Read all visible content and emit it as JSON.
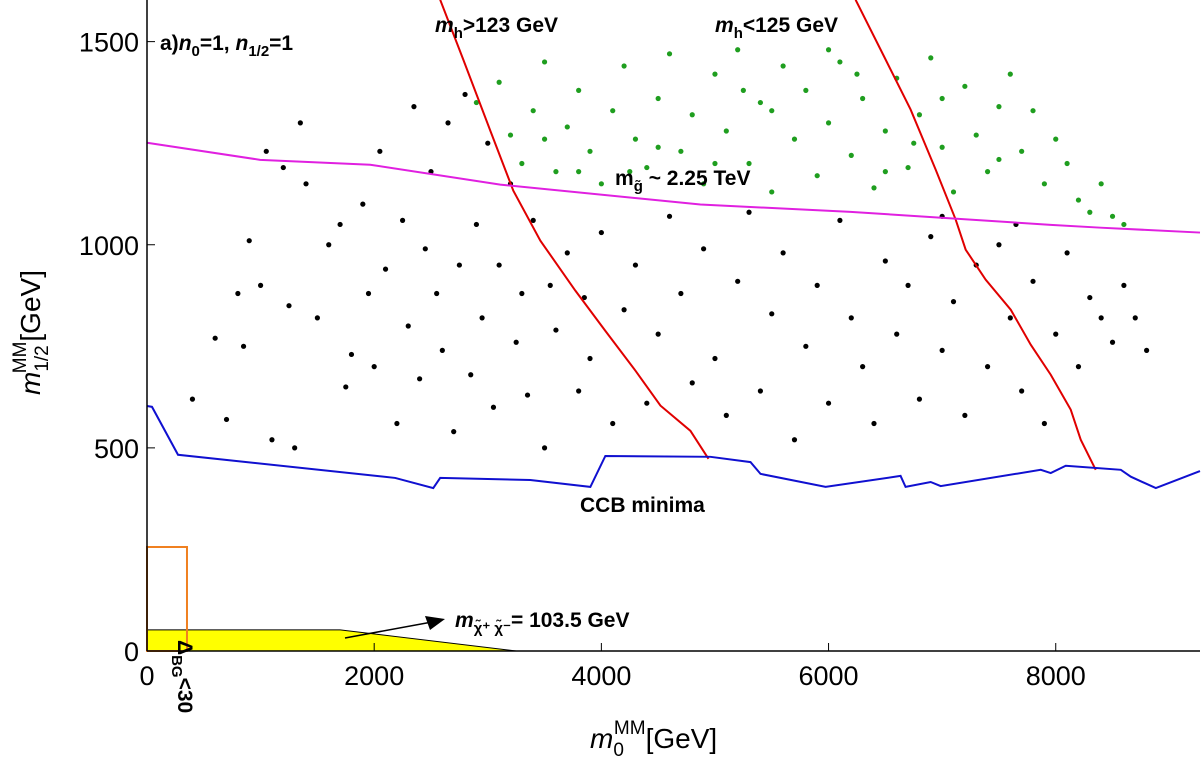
{
  "chart_data": {
    "type": "scatter",
    "xlim": [
      0,
      9270
    ],
    "ylim": [
      0,
      1600
    ],
    "xticks": [
      0,
      2000,
      4000,
      6000,
      8000
    ],
    "yticks": [
      0,
      500,
      1000,
      1500
    ],
    "x_label": [
      "m",
      "0",
      "MM",
      "[GeV]"
    ],
    "y_label": [
      "m",
      "1/2",
      "MM",
      "[GeV]"
    ],
    "panel_label": [
      "a)",
      "n",
      "0",
      "=1, ",
      "n",
      "1/2",
      "=1"
    ],
    "series": [
      {
        "color": "#000000",
        "x": [
          400,
          600,
          700,
          800,
          850,
          900,
          1000,
          1050,
          1100,
          1200,
          1250,
          1300,
          1350,
          1400,
          1500,
          1600,
          1700,
          1750,
          1800,
          1900,
          1950,
          2000,
          2050,
          2100,
          2200,
          2250,
          2300,
          2350,
          2400,
          2450,
          2500,
          2550,
          2600,
          2650,
          2700,
          2750,
          2800,
          2850,
          2900,
          2950,
          3000,
          3050,
          3100,
          3200,
          3250,
          3300,
          3350,
          3400,
          3500,
          3550,
          3600,
          3700,
          3800,
          3850,
          3900,
          4000,
          4100,
          4200,
          4300,
          4400,
          4500,
          4600,
          4700,
          4800,
          4900,
          5000,
          5100,
          5200,
          5300,
          5400,
          5500,
          5600,
          5700,
          5800,
          5900,
          6000,
          6100,
          6200,
          6300,
          6400,
          6500,
          6600,
          6700,
          6800,
          6900,
          7000,
          7100,
          7200,
          7300,
          7400,
          7500,
          7600,
          7700,
          7800,
          7900,
          8000,
          8100,
          8200,
          8300,
          8400,
          8500,
          8600,
          8700,
          8800,
          7650,
          7000
        ],
        "y": [
          620,
          770,
          570,
          880,
          750,
          1010,
          900,
          1230,
          520,
          1190,
          850,
          500,
          1300,
          1150,
          820,
          1000,
          1050,
          650,
          730,
          1100,
          880,
          700,
          1230,
          940,
          560,
          1060,
          800,
          1340,
          670,
          990,
          1180,
          880,
          740,
          1300,
          540,
          950,
          1370,
          680,
          1050,
          820,
          1250,
          600,
          950,
          1150,
          760,
          880,
          630,
          1060,
          500,
          900,
          790,
          980,
          640,
          870,
          720,
          1030,
          560,
          840,
          950,
          610,
          780,
          1070,
          880,
          660,
          990,
          720,
          580,
          910,
          1080,
          640,
          830,
          980,
          520,
          750,
          900,
          610,
          1060,
          820,
          700,
          560,
          960,
          780,
          900,
          620,
          1020,
          740,
          860,
          580,
          950,
          700,
          1000,
          820,
          640,
          910,
          560,
          780,
          980,
          700,
          870,
          820,
          760,
          900,
          820,
          740,
          1050,
          1070
        ]
      },
      {
        "color": "#1f9e1f",
        "x": [
          2900,
          3100,
          3200,
          3300,
          3400,
          3500,
          3600,
          3700,
          3800,
          3900,
          4000,
          4100,
          4200,
          4300,
          4400,
          4500,
          4600,
          4700,
          4800,
          4900,
          5000,
          5100,
          5200,
          5300,
          5400,
          5500,
          5600,
          5700,
          5800,
          5900,
          6000,
          6100,
          6200,
          6300,
          6400,
          6500,
          6600,
          6700,
          6800,
          6900,
          7000,
          7100,
          7200,
          7300,
          7400,
          7500,
          7600,
          7700,
          7800,
          7900,
          8000,
          8100,
          8200,
          8300,
          8400,
          8500,
          8600,
          5000,
          5500,
          6000,
          6500,
          3500,
          4500,
          7000,
          7500,
          5250,
          4250,
          6750,
          3800,
          6250
        ],
        "y": [
          1350,
          1400,
          1270,
          1200,
          1330,
          1450,
          1180,
          1290,
          1380,
          1230,
          1150,
          1330,
          1440,
          1260,
          1190,
          1360,
          1470,
          1230,
          1320,
          1150,
          1420,
          1280,
          1480,
          1200,
          1350,
          1130,
          1440,
          1260,
          1380,
          1170,
          1300,
          1450,
          1220,
          1360,
          1140,
          1280,
          1410,
          1190,
          1320,
          1460,
          1240,
          1130,
          1390,
          1270,
          1180,
          1340,
          1420,
          1230,
          1330,
          1150,
          1260,
          1200,
          1110,
          1080,
          1150,
          1070,
          1050,
          1200,
          1330,
          1480,
          1180,
          1260,
          1240,
          1360,
          1210,
          1380,
          1180,
          1250,
          1180,
          1420
        ]
      }
    ],
    "lines": [
      {
        "color": "#e00000",
        "x": [
          2581,
          2784,
          3022,
          3225,
          3463,
          3771,
          4035,
          4300,
          4520,
          4784,
          4943
        ],
        "y": [
          1603,
          1456,
          1281,
          1133,
          1010,
          887,
          788,
          690,
          604,
          542,
          473
        ]
      },
      {
        "color": "#e00000",
        "x": [
          6238,
          6502,
          6722,
          6943,
          7119,
          7207,
          7383,
          7604,
          7780,
          7956,
          8132,
          8220,
          8352
        ],
        "y": [
          1603,
          1456,
          1333,
          1185,
          1062,
          988,
          914,
          840,
          754,
          680,
          594,
          520,
          446
        ]
      },
      {
        "color": "#e020e0",
        "x": [
          0,
          996,
          1965,
          3110,
          4872,
          6194,
          7956,
          8396,
          9270
        ],
        "y": [
          1251,
          1209,
          1197,
          1148,
          1099,
          1081,
          1049,
          1042,
          1030
        ]
      },
      {
        "color": "#1010d0",
        "x": [
          0,
          44,
          273,
          2185,
          2520,
          2581,
          3374,
          3903,
          4035,
          4960,
          5313,
          5401,
          5974,
          6634,
          6678,
          6899,
          6987,
          7868,
          7956,
          8088,
          8573,
          8661,
          8881,
          9270
        ],
        "y": [
          603,
          601,
          483,
          426,
          401,
          426,
          421,
          404,
          480,
          478,
          465,
          436,
          404,
          431,
          404,
          416,
          406,
          446,
          438,
          456,
          446,
          429,
          401,
          443
        ]
      }
    ],
    "regions": [
      {
        "color": "#ffff00",
        "x": [
          0,
          0,
          1700,
          3250
        ],
        "y": [
          0,
          52,
          52,
          0
        ]
      },
      {
        "color": "#f08020",
        "x": [
          0,
          0,
          352,
          352
        ],
        "y": [
          0,
          256,
          256,
          0
        ],
        "outline": true
      }
    ],
    "annotations": [
      [
        "m",
        "h",
        ">123 GeV"
      ],
      [
        "m",
        "h",
        "<125 GeV"
      ],
      [
        "m",
        "g̃",
        " ~ 2.25 TeV"
      ],
      [
        "CCB minima"
      ],
      [
        "Δ",
        "BG",
        "<30"
      ],
      [
        "m",
        "χ̃⁺ χ̃⁻",
        "= 103.5 GeV"
      ]
    ]
  }
}
